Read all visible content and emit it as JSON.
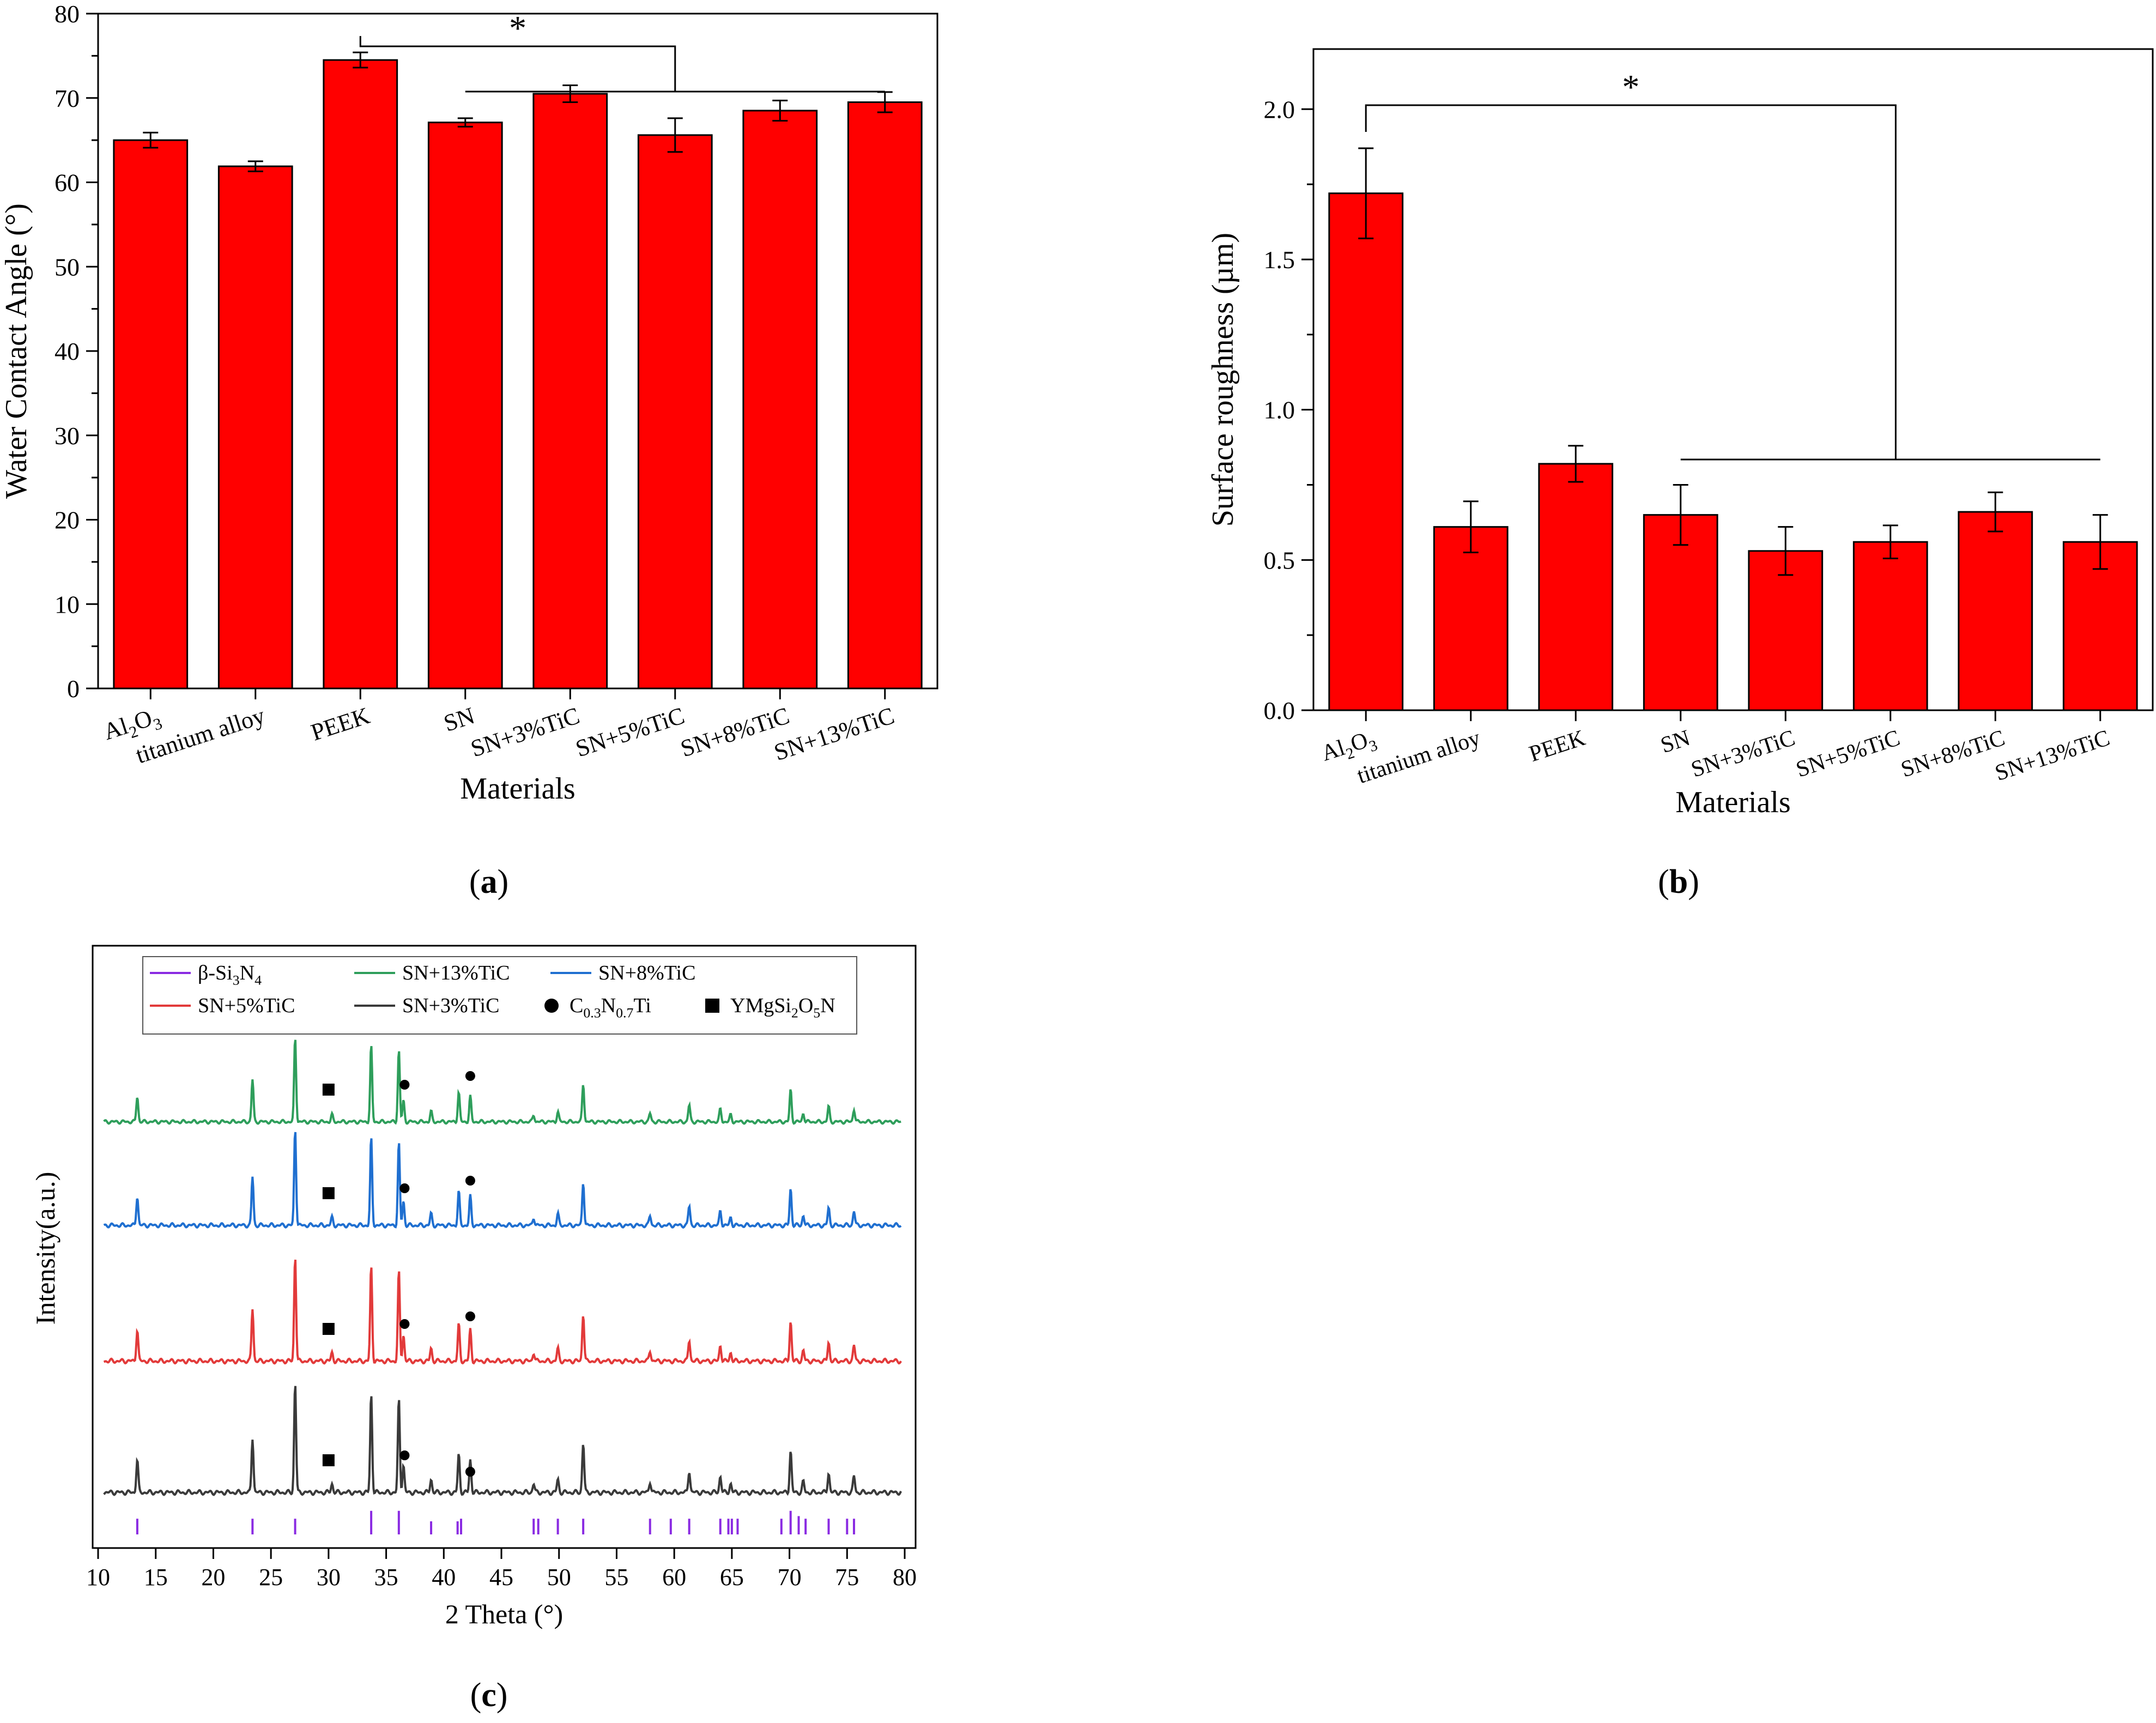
{
  "panels": {
    "a": {
      "label": "a"
    },
    "b": {
      "label": "b"
    },
    "c": {
      "label": "c"
    }
  },
  "chart_data": [
    {
      "id": "a",
      "type": "bar",
      "color": "#ff0000",
      "categories": [
        "Al2O3",
        "titanium alloy",
        "PEEK",
        "SN",
        "SN+3%TiC",
        "SN+5%TiC",
        "SN+8%TiC",
        "SN+13%TiC"
      ],
      "values": [
        65.0,
        61.9,
        74.5,
        67.1,
        70.5,
        65.6,
        68.5,
        69.5
      ],
      "errors": [
        0.9,
        0.6,
        0.9,
        0.5,
        1.0,
        2.0,
        1.2,
        1.2
      ],
      "xlabel": "Materials",
      "ylabel": "Water Contact Angle (°)",
      "ylim": [
        0,
        80
      ],
      "yticks": [
        0,
        10,
        20,
        30,
        40,
        50,
        60,
        70,
        80
      ],
      "significance": {
        "symbol": "*",
        "from": "PEEK",
        "to_range": [
          "SN",
          "SN+13%TiC"
        ]
      }
    },
    {
      "id": "b",
      "type": "bar",
      "color": "#ff0000",
      "categories": [
        "Al2O3",
        "titanium alloy",
        "PEEK",
        "SN",
        "SN+3%TiC",
        "SN+5%TiC",
        "SN+8%TiC",
        "SN+13%TiC"
      ],
      "values": [
        1.72,
        0.61,
        0.82,
        0.65,
        0.53,
        0.56,
        0.66,
        0.56
      ],
      "errors": [
        0.15,
        0.085,
        0.06,
        0.1,
        0.08,
        0.055,
        0.065,
        0.09
      ],
      "xlabel": "Materials",
      "ylabel": "Surface roughness (µm)",
      "ylim": [
        0,
        2.2
      ],
      "yticks": [
        "0.0",
        "0.5",
        "1.0",
        "1.5",
        "2.0"
      ],
      "significance": {
        "symbol": "*",
        "from": "Al2O3",
        "to_range": [
          "SN",
          "SN+13%TiC"
        ]
      }
    },
    {
      "id": "c",
      "type": "line",
      "xlabel": "2 Theta (°)",
      "ylabel": "Intensity(a.u.)",
      "xlim": [
        10,
        80
      ],
      "xticks": [
        10,
        15,
        20,
        25,
        30,
        35,
        40,
        45,
        50,
        55,
        60,
        65,
        70,
        75,
        80
      ],
      "legend": [
        {
          "label": "β-Si3N4",
          "color": "#8a2be2",
          "marker": "line"
        },
        {
          "label": "SN+13%TiC",
          "color": "#2e9e5b",
          "marker": "line"
        },
        {
          "label": "SN+8%TiC",
          "color": "#1f6fd0",
          "marker": "line"
        },
        {
          "label": "SN+5%TiC",
          "color": "#e23a3a",
          "marker": "line"
        },
        {
          "label": "SN+3%TiC",
          "color": "#3a3a3a",
          "marker": "line"
        },
        {
          "label": "C0.3N0.7Ti",
          "color": "#000000",
          "marker": "circle"
        },
        {
          "label": "YMgSi2O5N",
          "color": "#000000",
          "marker": "square"
        }
      ],
      "peaks": [
        {
          "x": 13.4,
          "h": 0.3
        },
        {
          "x": 23.4,
          "h": 0.5
        },
        {
          "x": 27.1,
          "h": 1.0
        },
        {
          "x": 30.3,
          "h": 0.08
        },
        {
          "x": 33.7,
          "h": 0.9
        },
        {
          "x": 36.1,
          "h": 0.85
        },
        {
          "x": 36.5,
          "h": 0.25
        },
        {
          "x": 38.9,
          "h": 0.12
        },
        {
          "x": 41.3,
          "h": 0.35
        },
        {
          "x": 42.3,
          "h": 0.3
        },
        {
          "x": 47.8,
          "h": 0.08
        },
        {
          "x": 49.9,
          "h": 0.12
        },
        {
          "x": 52.1,
          "h": 0.45
        },
        {
          "x": 57.9,
          "h": 0.1
        },
        {
          "x": 61.3,
          "h": 0.2
        },
        {
          "x": 64.0,
          "h": 0.15
        },
        {
          "x": 64.9,
          "h": 0.08
        },
        {
          "x": 70.1,
          "h": 0.38
        },
        {
          "x": 71.2,
          "h": 0.1
        },
        {
          "x": 73.4,
          "h": 0.18
        },
        {
          "x": 75.6,
          "h": 0.15
        }
      ],
      "series": [
        {
          "name": "SN+13%TiC",
          "color": "#2e9e5b",
          "scale": 1.0
        },
        {
          "name": "SN+8%TiC",
          "color": "#1f6fd0",
          "scale": 1.15
        },
        {
          "name": "SN+5%TiC",
          "color": "#e23a3a",
          "scale": 1.25
        },
        {
          "name": "SN+3%TiC",
          "color": "#3a3a3a",
          "scale": 1.3
        }
      ],
      "markers": [
        {
          "series": "SN+13%TiC",
          "square": 30.0,
          "circles": [
            36.6,
            42.3
          ]
        },
        {
          "series": "SN+8%TiC",
          "square": 30.0,
          "circles": [
            36.6,
            42.3
          ]
        },
        {
          "series": "SN+5%TiC",
          "square": 30.0,
          "circles": [
            36.6,
            42.3
          ]
        },
        {
          "series": "SN+3%TiC",
          "square": 30.0,
          "circles": [
            36.6,
            42.3
          ]
        }
      ],
      "reference_lines": [
        13.4,
        23.4,
        27.1,
        33.7,
        36.1,
        38.9,
        41.2,
        41.5,
        47.8,
        48.2,
        49.9,
        52.1,
        57.9,
        59.7,
        61.3,
        64.0,
        64.7,
        65.0,
        65.5,
        69.3,
        70.1,
        70.8,
        71.4,
        73.4,
        75.0,
        75.6
      ],
      "reference_heights": [
        0.6,
        0.6,
        0.6,
        0.9,
        0.9,
        0.5,
        0.5,
        0.6,
        0.6,
        0.6,
        0.6,
        0.6,
        0.6,
        0.6,
        0.6,
        0.6,
        0.6,
        0.6,
        0.6,
        0.6,
        0.9,
        0.7,
        0.6,
        0.6,
        0.6,
        0.6
      ]
    }
  ]
}
